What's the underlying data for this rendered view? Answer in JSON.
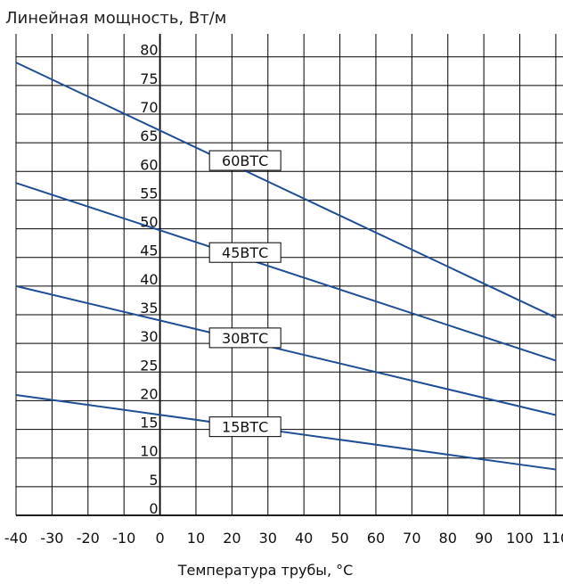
{
  "chart_data": {
    "type": "line",
    "title": "Линейная мощность, Вт/м",
    "xlabel": "Температура трубы, °C",
    "ylabel": "",
    "xlim": [
      -40,
      112
    ],
    "ylim": [
      0,
      84
    ],
    "x_ticks": [
      -40,
      -30,
      -20,
      -10,
      0,
      10,
      20,
      30,
      40,
      50,
      60,
      70,
      80,
      90,
      100,
      110
    ],
    "y_ticks": [
      0,
      5,
      10,
      15,
      20,
      25,
      30,
      35,
      40,
      45,
      50,
      55,
      60,
      65,
      70,
      75,
      80
    ],
    "grid": true,
    "line_color": "#1f4e96",
    "grid_color": "#000000",
    "series": [
      {
        "name": "60ВТС",
        "x": [
          -40,
          110
        ],
        "y": [
          79,
          34.5
        ]
      },
      {
        "name": "45ВТС",
        "x": [
          -40,
          110
        ],
        "y": [
          58,
          27
        ]
      },
      {
        "name": "30ВТС",
        "x": [
          -40,
          110
        ],
        "y": [
          40,
          17.5
        ]
      },
      {
        "name": "15ВТС",
        "x": [
          -40,
          110
        ],
        "y": [
          21,
          8
        ]
      }
    ],
    "series_label_x": 15
  }
}
